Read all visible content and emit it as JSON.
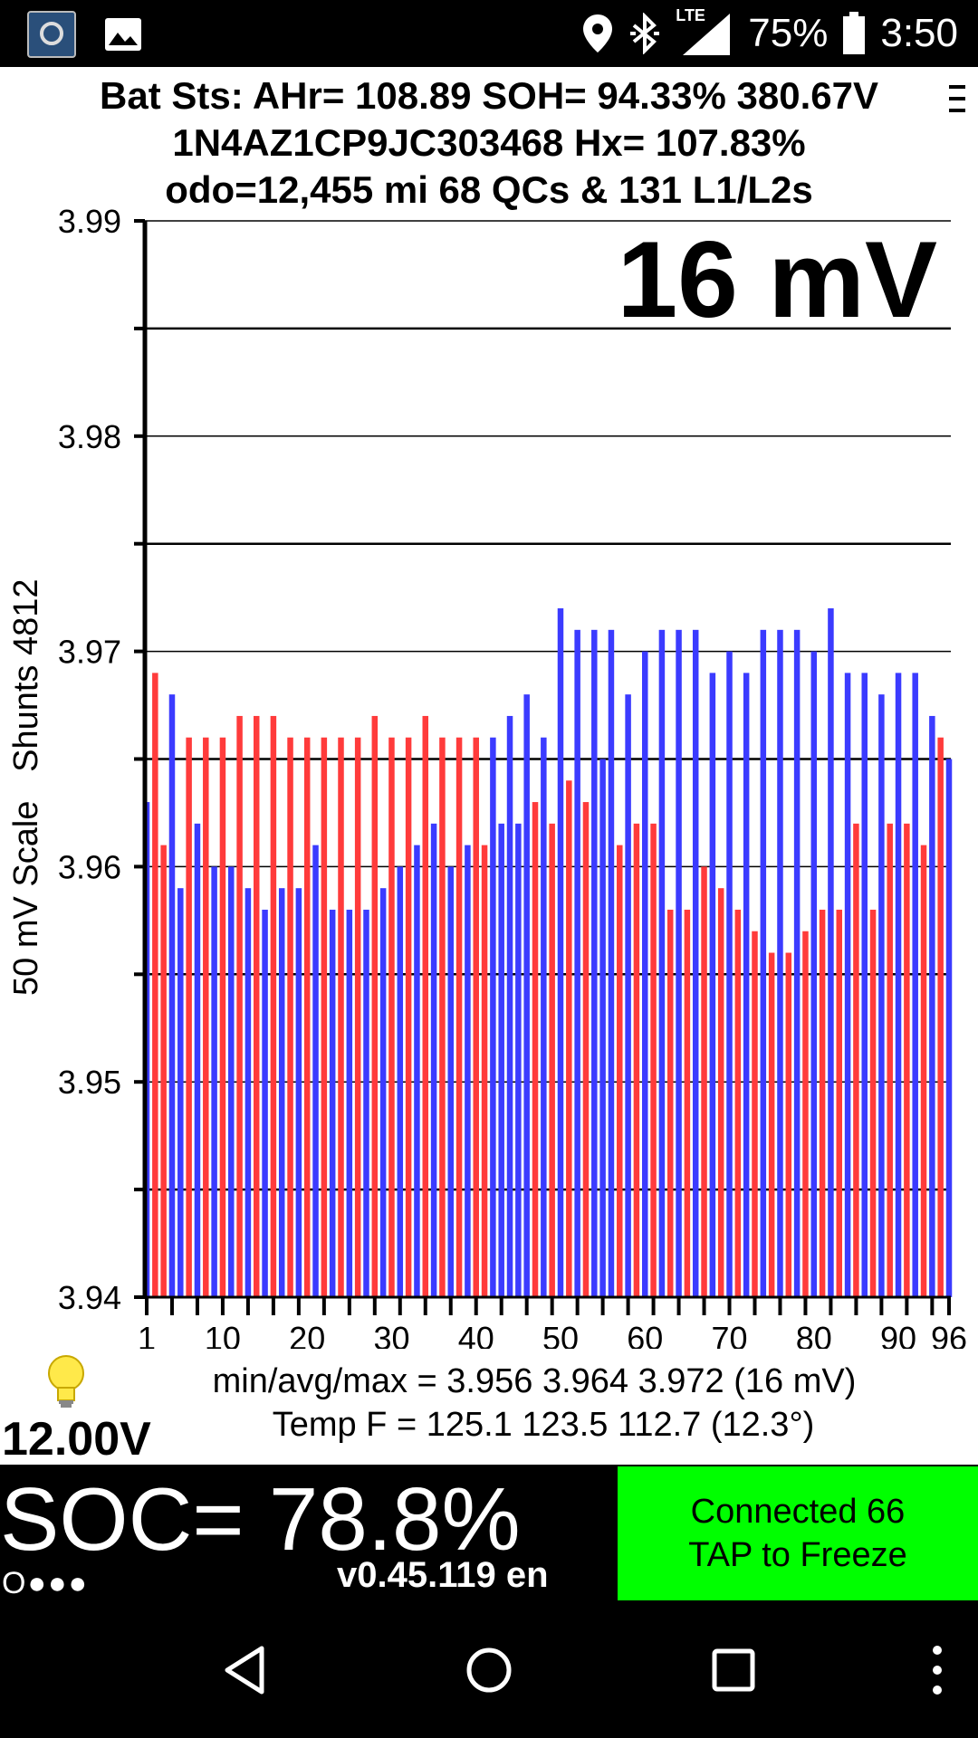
{
  "status_bar": {
    "icons_left": [
      "app-icon",
      "image-icon"
    ],
    "icons_right": [
      "location-icon",
      "bluetooth-icon",
      "lte-signal-icon",
      "battery-icon"
    ],
    "network": "LTE",
    "battery": "75%",
    "time": "3:50"
  },
  "header": {
    "line1": "Bat Sts: AHr= 108.89 SOH= 94.33% 380.67V",
    "line2": "1N4AZ1CP9JC303468   Hx= 107.83%",
    "line3": "odo=12,455 mi 68 QCs & 131 L1/L2s",
    "menu_icon": "menu-icon"
  },
  "spread": "16 mV",
  "y_title": "50 mV Scale   Shunts 4812",
  "chart_data": {
    "type": "bar",
    "ylim": [
      3.94,
      3.99
    ],
    "yticks": [
      "3.99",
      "3.98",
      "3.97",
      "3.96",
      "3.95",
      "3.94"
    ],
    "xticks": [
      "1",
      "10",
      "20",
      "30",
      "40",
      "50",
      "60",
      "70",
      "80",
      "90",
      "96"
    ],
    "grid": true,
    "colors": {
      "shunt": "#ff3b3b",
      "normal": "#3b3bff"
    },
    "cells": [
      1,
      2,
      3,
      4,
      5,
      6,
      7,
      8,
      9,
      10,
      11,
      12,
      13,
      14,
      15,
      16,
      17,
      18,
      19,
      20,
      21,
      22,
      23,
      24,
      25,
      26,
      27,
      28,
      29,
      30,
      31,
      32,
      33,
      34,
      35,
      36,
      37,
      38,
      39,
      40,
      41,
      42,
      43,
      44,
      45,
      46,
      47,
      48,
      49,
      50,
      51,
      52,
      53,
      54,
      55,
      56,
      57,
      58,
      59,
      60,
      61,
      62,
      63,
      64,
      65,
      66,
      67,
      68,
      69,
      70,
      71,
      72,
      73,
      74,
      75,
      76,
      77,
      78,
      79,
      80,
      81,
      82,
      83,
      84,
      85,
      86,
      87,
      88,
      89,
      90,
      91,
      92,
      93,
      94,
      95,
      96
    ],
    "voltages": [
      3.963,
      3.969,
      3.961,
      3.968,
      3.959,
      3.966,
      3.962,
      3.966,
      3.96,
      3.966,
      3.96,
      3.967,
      3.959,
      3.967,
      3.958,
      3.967,
      3.959,
      3.966,
      3.959,
      3.966,
      3.961,
      3.966,
      3.958,
      3.966,
      3.958,
      3.966,
      3.958,
      3.967,
      3.959,
      3.966,
      3.96,
      3.966,
      3.961,
      3.967,
      3.962,
      3.966,
      3.96,
      3.966,
      3.961,
      3.966,
      3.961,
      3.966,
      3.962,
      3.967,
      3.962,
      3.968,
      3.963,
      3.966,
      3.962,
      3.972,
      3.964,
      3.971,
      3.963,
      3.971,
      3.965,
      3.971,
      3.961,
      3.968,
      3.962,
      3.97,
      3.962,
      3.971,
      3.958,
      3.971,
      3.958,
      3.971,
      3.96,
      3.969,
      3.959,
      3.97,
      3.958,
      3.969,
      3.957,
      3.971,
      3.956,
      3.971,
      3.956,
      3.971,
      3.957,
      3.97,
      3.958,
      3.972,
      3.958,
      3.969,
      3.962,
      3.969,
      3.958,
      3.968,
      3.962,
      3.969,
      3.962,
      3.969,
      3.961,
      3.967,
      3.966,
      3.965
    ],
    "shunted": [
      false,
      true,
      true,
      false,
      false,
      true,
      false,
      true,
      false,
      true,
      false,
      true,
      false,
      true,
      false,
      true,
      false,
      true,
      false,
      true,
      false,
      true,
      false,
      true,
      false,
      true,
      false,
      true,
      false,
      true,
      false,
      true,
      false,
      true,
      false,
      true,
      false,
      true,
      false,
      true,
      true,
      false,
      false,
      false,
      false,
      false,
      true,
      false,
      true,
      false,
      true,
      false,
      true,
      false,
      false,
      false,
      true,
      false,
      true,
      false,
      true,
      false,
      true,
      false,
      true,
      false,
      true,
      false,
      true,
      false,
      true,
      false,
      true,
      false,
      true,
      false,
      true,
      false,
      true,
      false,
      true,
      false,
      true,
      false,
      true,
      false,
      true,
      false,
      true,
      false,
      true,
      false,
      true,
      false,
      true,
      false
    ]
  },
  "stats": {
    "line1": "min/avg/max = 3.956 3.964 3.972  (16 mV)",
    "line2": "Temp F = 125.1  123.5  112.7  (12.3°)"
  },
  "bulb_icon": "light-bulb-icon",
  "aux_voltage": "12.00V",
  "soc": "SOC= 78.8%",
  "dots": "O●●●",
  "version": "v0.45.119 en",
  "connect_button": {
    "line1": "Connected 66",
    "line2": "TAP to Freeze",
    "color": "#00ff00"
  },
  "nav": [
    "back-icon",
    "home-icon",
    "recents-icon",
    "more-icon"
  ]
}
